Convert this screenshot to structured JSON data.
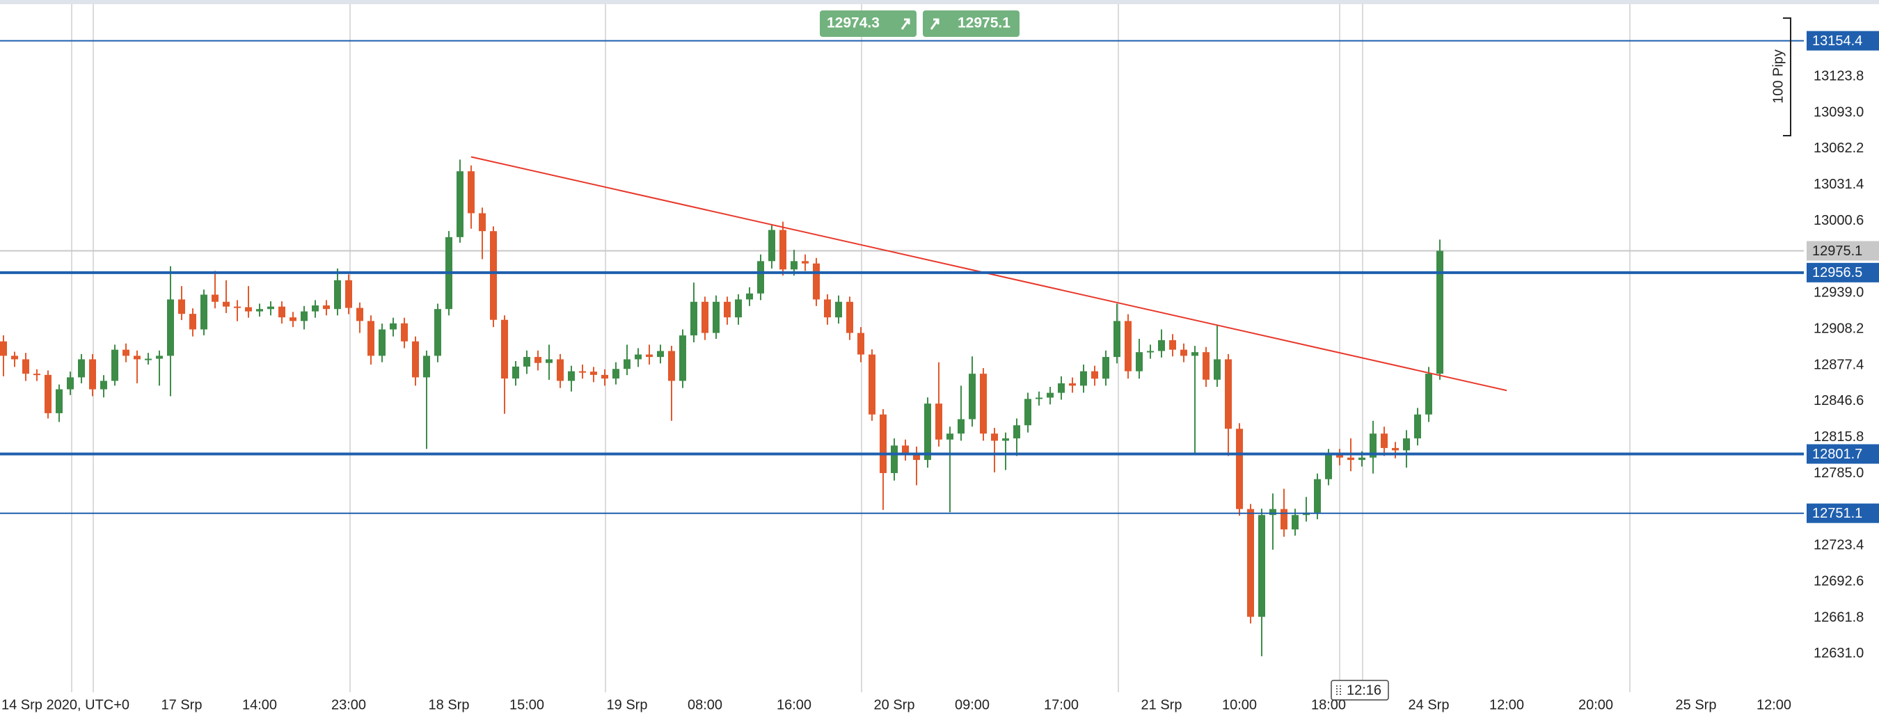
{
  "chart_data": {
    "type": "candlestick",
    "categories": [
      "14 Srp 2020, UTC+0",
      null,
      null,
      null,
      null,
      null,
      null,
      null,
      null,
      null,
      null,
      null,
      null,
      null,
      null,
      null,
      "17 Srp",
      null,
      null,
      null,
      null,
      null,
      null,
      "14:00",
      null,
      null,
      null,
      null,
      null,
      null,
      null,
      "23:00",
      null,
      null,
      null,
      null,
      null,
      null,
      null,
      null,
      "18 Srp",
      null,
      null,
      null,
      null,
      null,
      null,
      "15:00",
      null,
      null,
      null,
      null,
      null,
      null,
      null,
      null,
      "19 Srp",
      null,
      null,
      null,
      null,
      null,
      null,
      "08:00",
      null,
      null,
      null,
      null,
      null,
      null,
      null,
      "16:00",
      null,
      null,
      null,
      null,
      null,
      null,
      null,
      null,
      "20 Srp",
      null,
      null,
      null,
      null,
      null,
      null,
      "09:00",
      null,
      null,
      null,
      null,
      null,
      null,
      null,
      "17:00",
      null,
      null,
      null,
      null,
      null,
      null,
      null,
      null,
      "21 Srp",
      null,
      null,
      null,
      null,
      null,
      null,
      "10:00",
      null,
      null,
      null,
      null,
      null,
      null,
      null,
      "18:00",
      null,
      null,
      null,
      null,
      null,
      null,
      null,
      null,
      "24 Srp",
      null,
      null,
      null,
      null,
      null,
      null,
      "12:00",
      null,
      null,
      null,
      null,
      null,
      null,
      null,
      "20:00",
      null,
      null,
      null,
      null,
      null,
      null,
      null,
      null,
      "25 Srp",
      null,
      null,
      null,
      null,
      null,
      null,
      "12:00"
    ],
    "open": [
      12897.8,
      12885.5,
      12882.5,
      12870.2,
      12869.2,
      12836.5,
      12856.9,
      12867.1,
      12882.5,
      12856.9,
      12864.1,
      12890.7,
      12885.5,
      12882.5,
      12883.0,
      12885.5,
      12933.6,
      12921.3,
      12908.0,
      12937.7,
      12931.6,
      12927.5,
      12927.0,
      12923.4,
      12925.4,
      12927.5,
      12918.3,
      12915.2,
      12923.4,
      12928.5,
      12925.4,
      12950.0,
      12926.4,
      12915.2,
      12885.5,
      12908.0,
      12913.2,
      12897.8,
      12867.1,
      12885.5,
      12925.4,
      12986.8,
      13043.0,
      13007.2,
      12991.9,
      12916.2,
      12866.1,
      12876.3,
      12884.5,
      12879.4,
      12882.5,
      12864.1,
      12872.3,
      12872.0,
      12869.2,
      12866.1,
      12874.3,
      12882.5,
      12886.6,
      12884.5,
      12889.6,
      12864.1,
      12902.9,
      12931.6,
      12905.0,
      12931.6,
      12918.3,
      12933.6,
      12938.7,
      12966.3,
      12992.9,
      12959.2,
      12966.3,
      12964.3,
      12933.6,
      12918.3,
      12931.6,
      12905.0,
      12886.6,
      12835.4,
      12785.4,
      12808.9,
      12802.7,
      12796.6,
      12844.7,
      12814.0,
      12819.1,
      12831.4,
      12870.2,
      12819.1,
      12813.0,
      12815.0,
      12826.2,
      12848.7,
      12849.8,
      12853.9,
      12862.0,
      12860.0,
      12872.3,
      12866.0,
      12884.5,
      12915.2,
      12872.3,
      12888.6,
      12889.6,
      12898.8,
      12890.7,
      12885.5,
      12888.6,
      12865.1,
      12882.5,
      12823.2,
      12754.7,
      12662.7,
      12749.6,
      12754.7,
      12737.3,
      12749.6,
      12751.6,
      12780.2,
      12800.7,
      12798.6,
      12796.6,
      12798.6,
      12819.1,
      12806.8,
      12804.8,
      12815.0,
      12835.4,
      12870.2,
      null,
      null,
      null,
      null,
      null,
      null,
      null,
      null,
      null,
      null,
      null,
      null,
      null,
      null,
      null,
      null,
      null,
      null,
      null,
      null,
      null,
      null,
      null,
      null,
      null,
      null,
      null,
      null,
      null,
      null
    ],
    "high": [
      12903,
      12889,
      12888,
      12874,
      12873,
      12861,
      12872,
      12887,
      12887,
      12869,
      12895,
      12896,
      12890,
      12888,
      12890,
      12962,
      12945,
      12926,
      12942,
      12958,
      12950,
      12933,
      12945,
      12930,
      12932,
      12932,
      12923,
      12928,
      12933,
      12933,
      12960,
      12955,
      12931,
      12920,
      12913,
      12918,
      12918,
      12902,
      12890,
      12930,
      12992,
      13053,
      13048,
      13012,
      12996,
      12920,
      12881,
      12890,
      12890,
      12895,
      12887,
      12877,
      12878,
      12876,
      12874,
      12880,
      12895,
      12892,
      12895,
      12895,
      12894,
      12908,
      12948,
      12936,
      12937,
      12936,
      12938,
      12944,
      12972,
      12998,
      13000,
      12976,
      12972,
      12969,
      12938,
      12937,
      12936,
      12910,
      12891,
      12840,
      12815,
      12814,
      12808,
      12850,
      12880,
      12825,
      12860,
      12885,
      12875,
      12824,
      12820,
      12832,
      12854,
      12855,
      12859,
      12868,
      12867,
      12878,
      12877,
      12890,
      12930,
      12921,
      12900,
      12895,
      12908,
      12904,
      12896,
      12894,
      12893,
      12912,
      12887,
      12828,
      12759,
      12755,
      12768,
      12772,
      12755,
      12765,
      12785,
      12806,
      12806,
      12815,
      12804,
      12830,
      12825,
      12812,
      12822,
      12841,
      12876,
      12984.7,
      null,
      null,
      null,
      null,
      null,
      null,
      null,
      null,
      null,
      null,
      null,
      null,
      null,
      null,
      null,
      null,
      null,
      null,
      null,
      null,
      null,
      null,
      null,
      null,
      null,
      null,
      null,
      null,
      null,
      null
    ],
    "low": [
      12868,
      12876,
      12864,
      12864,
      12832,
      12829,
      12852,
      12862,
      12851,
      12850,
      12860,
      12880,
      12862,
      12878,
      12860,
      12851,
      12916,
      12902,
      12903,
      12926,
      12922,
      12915,
      12918,
      12919,
      12920,
      12913,
      12910,
      12908,
      12918,
      12920,
      12920,
      12921,
      12905,
      12878,
      12880,
      12902,
      12892,
      12860,
      12806,
      12880,
      12920,
      12982,
      12994,
      12968,
      12910,
      12836,
      12860,
      12870,
      12873,
      12865,
      12858,
      12855,
      12866,
      12863,
      12860,
      12861,
      12869,
      12876,
      12878,
      12879,
      12830,
      12858,
      12897,
      12899,
      12900,
      12912,
      12912,
      12928,
      12933,
      12960,
      12954,
      12954,
      12958,
      12928,
      12912,
      12913,
      12899,
      12880,
      12830,
      12754,
      12779,
      12796,
      12775,
      12790,
      12808,
      12752,
      12813,
      12825,
      12813,
      12786,
      12788,
      12800,
      12820,
      12843,
      12844,
      12848,
      12854,
      12854,
      12860,
      12860,
      12879,
      12866,
      12866,
      12883,
      12884,
      12885,
      12880,
      12802,
      12859,
      12859,
      12800,
      12749,
      12657,
      12629,
      12720,
      12731,
      12732,
      12744,
      12746,
      12775,
      12792,
      12787,
      12791,
      12785,
      12800,
      12798,
      12790,
      12809,
      12829,
      12865,
      null,
      null,
      null,
      null,
      null,
      null,
      null,
      null,
      null,
      null,
      null,
      null,
      null,
      null,
      null,
      null,
      null,
      null,
      null,
      null,
      null,
      null,
      null,
      null,
      null,
      null,
      null,
      null,
      null,
      null
    ],
    "close": [
      12885.5,
      12882.5,
      12870.2,
      12869.2,
      12836.5,
      12856.9,
      12867.1,
      12882.5,
      12856.9,
      12864.1,
      12890.7,
      12885.5,
      12882.5,
      12883.0,
      12885.5,
      12933.6,
      12921.3,
      12908.0,
      12937.7,
      12931.6,
      12927.5,
      12927.0,
      12923.4,
      12925.4,
      12927.5,
      12918.3,
      12915.2,
      12923.4,
      12928.5,
      12925.4,
      12950.0,
      12926.4,
      12915.2,
      12885.5,
      12908.0,
      12913.2,
      12897.8,
      12867.1,
      12885.5,
      12925.4,
      12986.8,
      13043.0,
      13007.2,
      12991.9,
      12916.2,
      12866.1,
      12876.3,
      12884.5,
      12879.4,
      12882.5,
      12864.1,
      12872.3,
      12872.0,
      12869.2,
      12866.1,
      12874.3,
      12882.5,
      12886.6,
      12884.5,
      12889.6,
      12864.1,
      12902.9,
      12931.6,
      12905.0,
      12931.6,
      12918.3,
      12933.6,
      12938.7,
      12966.3,
      12992.9,
      12959.2,
      12966.3,
      12964.3,
      12933.6,
      12918.3,
      12931.6,
      12905.0,
      12886.6,
      12835.4,
      12785.4,
      12808.9,
      12802.7,
      12796.6,
      12844.7,
      12814.0,
      12819.1,
      12831.4,
      12870.2,
      12819.1,
      12813.0,
      12815.0,
      12826.2,
      12848.7,
      12849.8,
      12853.9,
      12862.0,
      12860.0,
      12872.3,
      12866.0,
      12884.5,
      12915.2,
      12872.3,
      12888.6,
      12889.6,
      12898.8,
      12890.7,
      12885.5,
      12888.6,
      12865.1,
      12882.5,
      12823.2,
      12754.7,
      12662.7,
      12749.6,
      12754.7,
      12737.3,
      12749.6,
      12751.6,
      12780.2,
      12800.7,
      12798.6,
      12796.6,
      12798.6,
      12819.1,
      12806.8,
      12804.8,
      12815.0,
      12835.4,
      12870.2,
      12975.1,
      null,
      null,
      null,
      null,
      null,
      null,
      null,
      null,
      null,
      null,
      null,
      null,
      null,
      null,
      null,
      null,
      null,
      null,
      null,
      null,
      null,
      null,
      null,
      null,
      null,
      null,
      null,
      null,
      null,
      null
    ],
    "up_color": "#3d8c48",
    "down_color": "#e2592c",
    "ylim": [
      12598.3,
      13189.2
    ],
    "yticks": [
      13123.8,
      {
        "value": 13093,
        "label": "13093.0"
      },
      13062.2,
      13031.4,
      13000.6,
      {
        "value": 12939,
        "label": "12939.0"
      },
      12908.2,
      12877.4,
      12846.6,
      12815.8,
      {
        "value": 12785,
        "label": "12785.0"
      },
      12723.4,
      12692.6,
      12661.8,
      {
        "value": 12631,
        "label": "12631.0"
      }
    ],
    "grid": false,
    "levels": [
      {
        "value": 13154.4,
        "thick": false,
        "color": "#1f5fae"
      },
      {
        "value": 12956.5,
        "thick": true,
        "color": "#1f5fae"
      },
      {
        "value": 12801.7,
        "thick": true,
        "color": "#1f5fae"
      },
      {
        "value": 12751.1,
        "thick": false,
        "color": "#1f5fae"
      }
    ],
    "last_price": 12975.1,
    "last_price_color": "#c8c8c8",
    "bid": 12974.3,
    "ask": 12975.1,
    "trendline": {
      "x": [
        42,
        135
      ],
      "y": [
        13055.3,
        12855.9
      ],
      "color": "#e8382a"
    },
    "scale_label": "100 Pipy",
    "crosshair_label": "12:16"
  }
}
